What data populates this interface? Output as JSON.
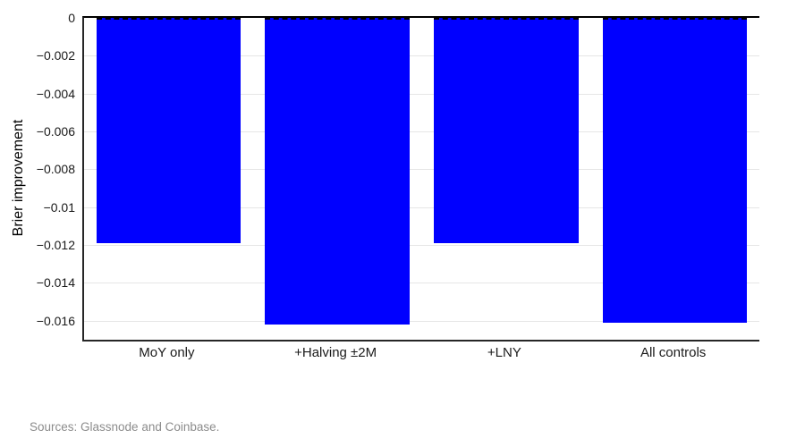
{
  "chart_data": {
    "type": "bar",
    "title": "",
    "xlabel": "",
    "ylabel": "Brier improvement",
    "categories": [
      "MoY only",
      "+Halving ±2M",
      "+LNY",
      "All controls"
    ],
    "values": [
      -0.0119,
      -0.0162,
      -0.0119,
      -0.0161
    ],
    "ylim": [
      -0.017,
      0
    ],
    "yticks": [
      {
        "value": 0,
        "label": "0"
      },
      {
        "value": -0.002,
        "label": "−0.002"
      },
      {
        "value": -0.004,
        "label": "−0.004"
      },
      {
        "value": -0.006,
        "label": "−0.006"
      },
      {
        "value": -0.008,
        "label": "−0.008"
      },
      {
        "value": -0.01,
        "label": "−0.01"
      },
      {
        "value": -0.012,
        "label": "−0.012"
      },
      {
        "value": -0.014,
        "label": "−0.014"
      },
      {
        "value": -0.016,
        "label": "−0.016"
      }
    ],
    "grid": "horizontal",
    "legend": "none",
    "bar_width_fraction": 0.856,
    "zero_line": {
      "value": 0,
      "style": "dashed",
      "color": "#000000"
    }
  },
  "colors": {
    "bar": "#0000ff",
    "grid": "#e6e6e6",
    "axis": "#262626",
    "tick_text": "#1a1a1a",
    "source_text": "#8c8c8c",
    "background": "#ffffff"
  },
  "footer": {
    "source_note": "Sources: Glassnode and Coinbase."
  }
}
